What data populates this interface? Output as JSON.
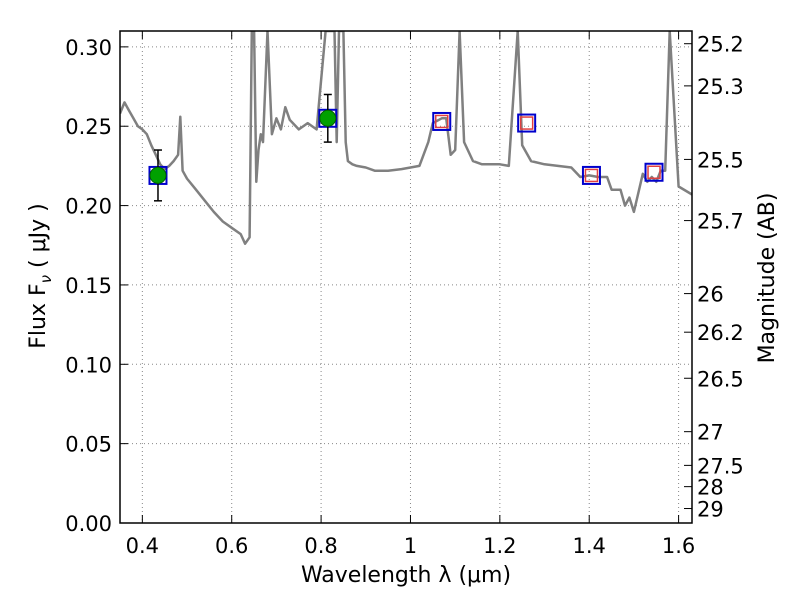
{
  "chart_data": {
    "type": "line",
    "xlabel": "Wavelength  λ (μm)",
    "ylabel": "Flux  F",
    "ylabel_sub": "ν",
    "ylabel_unit": "  ( μJy )",
    "y2label": "Magnitude (AB)",
    "xlim": [
      0.35,
      1.63
    ],
    "ylim": [
      0.0,
      0.31
    ],
    "grid": true,
    "x_ticks": [
      0.4,
      0.6,
      0.8,
      1.0,
      1.2,
      1.4,
      1.6
    ],
    "x_tick_labels": [
      "0.4",
      "0.6",
      "0.8",
      "1",
      "1.2",
      "1.4",
      "1.6"
    ],
    "y_ticks": [
      0.0,
      0.05,
      0.1,
      0.15,
      0.2,
      0.25,
      0.3
    ],
    "y_tick_labels": [
      "0.00",
      "0.05",
      "0.10",
      "0.15",
      "0.20",
      "0.25",
      "0.30"
    ],
    "y2_ticks": [
      "25.2",
      "25.3",
      "25.5",
      "25.7",
      "26",
      "26.2",
      "26.5",
      "27",
      "27.5",
      "28",
      "29"
    ],
    "model_spectrum": {
      "color": "#808080",
      "x": [
        0.35,
        0.36,
        0.37,
        0.38,
        0.39,
        0.4,
        0.41,
        0.42,
        0.43,
        0.44,
        0.45,
        0.46,
        0.47,
        0.48,
        0.485,
        0.49,
        0.5,
        0.52,
        0.54,
        0.56,
        0.58,
        0.6,
        0.62,
        0.63,
        0.64,
        0.645,
        0.65,
        0.655,
        0.66,
        0.665,
        0.67,
        0.68,
        0.69,
        0.7,
        0.71,
        0.72,
        0.73,
        0.75,
        0.77,
        0.79,
        0.81,
        0.83,
        0.835,
        0.84,
        0.85,
        0.855,
        0.86,
        0.87,
        0.88,
        0.9,
        0.92,
        0.95,
        0.98,
        1.0,
        1.02,
        1.04,
        1.05,
        1.07,
        1.08,
        1.09,
        1.1,
        1.11,
        1.12,
        1.14,
        1.16,
        1.18,
        1.2,
        1.22,
        1.24,
        1.25,
        1.27,
        1.3,
        1.33,
        1.36,
        1.38,
        1.4,
        1.42,
        1.44,
        1.45,
        1.47,
        1.48,
        1.49,
        1.5,
        1.52,
        1.53,
        1.54,
        1.55,
        1.56,
        1.57,
        1.58,
        1.6,
        1.63
      ],
      "y": [
        0.258,
        0.265,
        0.26,
        0.255,
        0.25,
        0.248,
        0.245,
        0.238,
        0.232,
        0.226,
        0.223,
        0.225,
        0.228,
        0.232,
        0.256,
        0.222,
        0.217,
        0.21,
        0.203,
        0.196,
        0.19,
        0.186,
        0.182,
        0.176,
        0.18,
        0.31,
        0.31,
        0.215,
        0.235,
        0.245,
        0.24,
        0.31,
        0.245,
        0.255,
        0.248,
        0.262,
        0.254,
        0.248,
        0.252,
        0.248,
        0.31,
        0.31,
        0.24,
        0.31,
        0.31,
        0.24,
        0.228,
        0.226,
        0.225,
        0.224,
        0.222,
        0.222,
        0.223,
        0.224,
        0.225,
        0.24,
        0.252,
        0.255,
        0.255,
        0.232,
        0.235,
        0.31,
        0.24,
        0.228,
        0.226,
        0.226,
        0.226,
        0.225,
        0.31,
        0.238,
        0.228,
        0.226,
        0.225,
        0.224,
        0.218,
        0.219,
        0.218,
        0.218,
        0.21,
        0.21,
        0.2,
        0.205,
        0.196,
        0.22,
        0.215,
        0.218,
        0.215,
        0.222,
        0.222,
        0.31,
        0.212,
        0.207
      ]
    },
    "observed_points": {
      "color": "#00a000",
      "x": [
        0.435,
        0.815
      ],
      "y": [
        0.219,
        0.255
      ],
      "yerr": [
        0.016,
        0.015
      ]
    },
    "model_boxes": {
      "outer_color": "#0000cc",
      "inner_color": "#e04040",
      "x": [
        0.435,
        0.815,
        1.07,
        1.26,
        1.405,
        1.545
      ],
      "y": [
        0.219,
        0.255,
        0.253,
        0.252,
        0.219,
        0.221
      ],
      "inner": [
        false,
        false,
        true,
        true,
        true,
        true
      ]
    }
  }
}
